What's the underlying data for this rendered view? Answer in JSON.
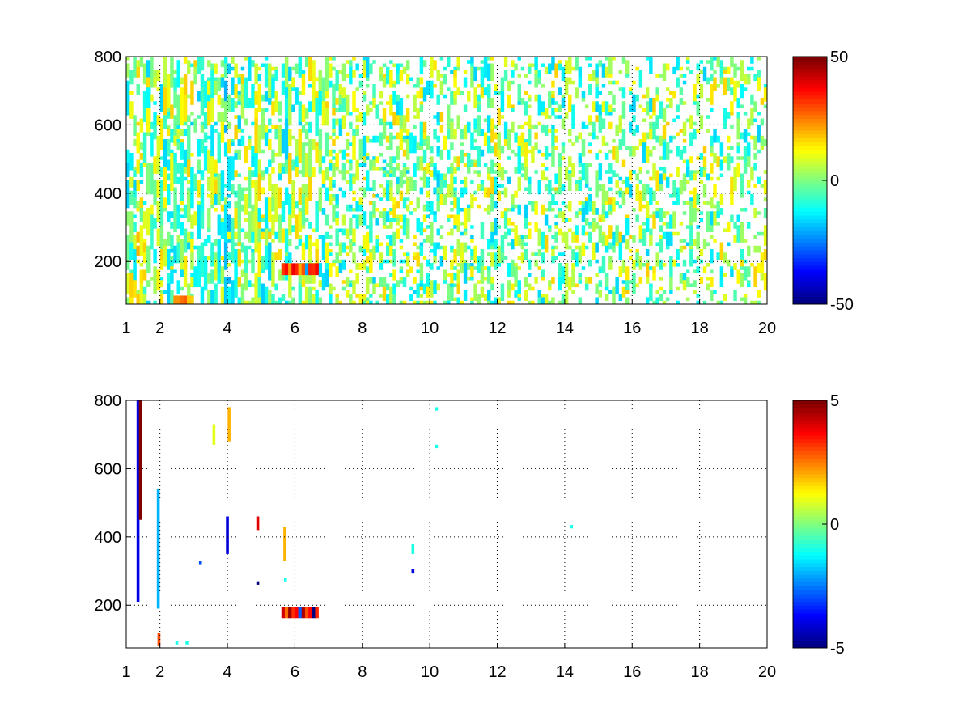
{
  "chart_data": [
    {
      "type": "heatmap",
      "title": "",
      "xlabel": "",
      "ylabel": "",
      "xlim": [
        1,
        20
      ],
      "ylim": [
        75,
        800
      ],
      "x_ticks": [
        1,
        2,
        4,
        6,
        8,
        10,
        12,
        14,
        16,
        18,
        20
      ],
      "x_tick_labels": [
        "1",
        "2",
        "4",
        "6",
        "8",
        "10",
        "12",
        "14",
        "16",
        "18",
        "20"
      ],
      "y_ticks": [
        200,
        400,
        600,
        800
      ],
      "y_tick_labels": [
        "200",
        "400",
        "600",
        "800"
      ],
      "grid": true,
      "colormap": "jet",
      "colorbar": {
        "min": -50,
        "max": 50,
        "ticks": [
          -50,
          0,
          50
        ],
        "tick_labels": [
          "-50",
          "0",
          "50"
        ]
      },
      "density": 0.34,
      "vmax_ratio": 0.35,
      "vertical_bands": [
        {
          "x": 1.35,
          "width": 0.06,
          "value": 18
        },
        {
          "x": 1.45,
          "width": 0.04,
          "value": 14
        },
        {
          "x": 1.95,
          "width": 0.05,
          "value": 12
        },
        {
          "x": 2.55,
          "width": 0.05,
          "value": -12
        },
        {
          "x": 3.3,
          "width": 0.05,
          "value": -10
        },
        {
          "x": 4.0,
          "width": 0.06,
          "value": -18
        },
        {
          "x": 4.85,
          "width": 0.05,
          "value": 12
        },
        {
          "x": 5.15,
          "width": 0.06,
          "value": -14
        },
        {
          "x": 5.7,
          "width": 0.05,
          "value": -16
        },
        {
          "x": 6.55,
          "width": 0.05,
          "value": 10
        },
        {
          "x": 9.45,
          "width": 0.08,
          "value": -12
        },
        {
          "x": 10.2,
          "width": 0.06,
          "value": -14
        },
        {
          "x": 14.15,
          "width": 0.2,
          "value": 8
        }
      ],
      "hotspots": [
        {
          "x_from": 5.6,
          "x_to": 6.7,
          "y_from": 160,
          "y_to": 195,
          "value": 35
        },
        {
          "x_from": 2.4,
          "x_to": 3.0,
          "y_from": 75,
          "y_to": 100,
          "value": 25
        }
      ]
    },
    {
      "type": "heatmap",
      "title": "",
      "xlabel": "",
      "ylabel": "",
      "xlim": [
        1,
        20
      ],
      "ylim": [
        75,
        800
      ],
      "x_ticks": [
        1,
        2,
        4,
        6,
        8,
        10,
        12,
        14,
        16,
        18,
        20
      ],
      "x_tick_labels": [
        "1",
        "2",
        "4",
        "6",
        "8",
        "10",
        "12",
        "14",
        "16",
        "18",
        "20"
      ],
      "y_ticks": [
        200,
        400,
        600,
        800
      ],
      "y_tick_labels": [
        "200",
        "400",
        "600",
        "800"
      ],
      "grid": true,
      "colormap": "jet",
      "colorbar": {
        "min": -5,
        "max": 5,
        "ticks": [
          -5,
          0,
          5
        ],
        "tick_labels": [
          "-5",
          "0",
          "5"
        ]
      },
      "cells": [
        {
          "x": 1.35,
          "y_from": 210,
          "y_to": 800,
          "value": -4
        },
        {
          "x": 1.42,
          "y_from": 450,
          "y_to": 800,
          "value": 5
        },
        {
          "x": 1.95,
          "y_from": 190,
          "y_to": 540,
          "value": -2
        },
        {
          "x": 1.97,
          "y_from": 80,
          "y_to": 120,
          "value": 3
        },
        {
          "x": 2.5,
          "y_from": 85,
          "y_to": 95,
          "value": -1
        },
        {
          "x": 2.8,
          "y_from": 85,
          "y_to": 95,
          "value": -1
        },
        {
          "x": 3.2,
          "y_from": 320,
          "y_to": 330,
          "value": -3
        },
        {
          "x": 3.6,
          "y_from": 670,
          "y_to": 730,
          "value": 1
        },
        {
          "x": 4.0,
          "y_from": 350,
          "y_to": 460,
          "value": -4
        },
        {
          "x": 4.05,
          "y_from": 680,
          "y_to": 780,
          "value": 2
        },
        {
          "x": 4.9,
          "y_from": 420,
          "y_to": 460,
          "value": 4
        },
        {
          "x": 4.9,
          "y_from": 260,
          "y_to": 270,
          "value": -5
        },
        {
          "x": 5.7,
          "y_from": 330,
          "y_to": 430,
          "value": 2
        },
        {
          "x": 5.72,
          "y_from": 270,
          "y_to": 280,
          "value": -1
        },
        {
          "x": 6.6,
          "y_from": 165,
          "y_to": 180,
          "value": 3
        },
        {
          "x": 9.5,
          "y_from": 350,
          "y_to": 380,
          "value": -1
        },
        {
          "x": 9.5,
          "y_from": 295,
          "y_to": 305,
          "value": -4
        },
        {
          "x": 10.2,
          "y_from": 660,
          "y_to": 670,
          "value": -1
        },
        {
          "x": 10.2,
          "y_from": 770,
          "y_to": 780,
          "value": -1
        },
        {
          "x": 14.2,
          "y_from": 425,
          "y_to": 435,
          "value": -1
        }
      ],
      "hotspots": [
        {
          "x_from": 5.6,
          "x_to": 6.7,
          "y_from": 162,
          "y_to": 195,
          "value": 4.5
        }
      ]
    }
  ]
}
